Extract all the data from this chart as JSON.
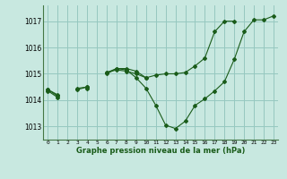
{
  "xlabel": "Graphe pression niveau de la mer (hPa)",
  "background_color": "#c8e8e0",
  "grid_color": "#96c8c0",
  "line_color": "#1a5c1a",
  "x_hours": [
    0,
    1,
    2,
    3,
    4,
    5,
    6,
    7,
    8,
    9,
    10,
    11,
    12,
    13,
    14,
    15,
    16,
    17,
    18,
    19,
    20,
    21,
    22,
    23
  ],
  "series1": [
    1014.35,
    1014.1,
    null,
    null,
    1014.45,
    null,
    1015.0,
    1015.2,
    1015.2,
    1015.1,
    1014.85,
    null,
    null,
    null,
    null,
    null,
    null,
    null,
    null,
    null,
    null,
    null,
    null,
    null
  ],
  "series2": [
    1014.4,
    1014.2,
    null,
    1014.4,
    1014.5,
    null,
    1015.05,
    1015.15,
    1015.1,
    1015.0,
    1014.85,
    1014.95,
    1015.0,
    1015.0,
    1015.05,
    1015.3,
    1015.6,
    1016.6,
    1017.0,
    1017.0,
    null,
    null,
    null,
    null
  ],
  "series3": [
    1014.4,
    1014.15,
    null,
    1014.45,
    1014.5,
    null,
    1015.05,
    1015.2,
    1015.15,
    1014.85,
    1014.45,
    1013.8,
    1013.05,
    1012.92,
    1013.2,
    1013.8,
    1014.05,
    1014.35,
    1014.7,
    1015.55,
    1016.6,
    1017.05,
    1017.05,
    1017.2
  ],
  "ylim": [
    1012.5,
    1017.6
  ],
  "yticks": [
    1013,
    1014,
    1015,
    1016,
    1017
  ],
  "xticks": [
    0,
    1,
    2,
    3,
    4,
    5,
    6,
    7,
    8,
    9,
    10,
    11,
    12,
    13,
    14,
    15,
    16,
    17,
    18,
    19,
    20,
    21,
    22,
    23
  ]
}
